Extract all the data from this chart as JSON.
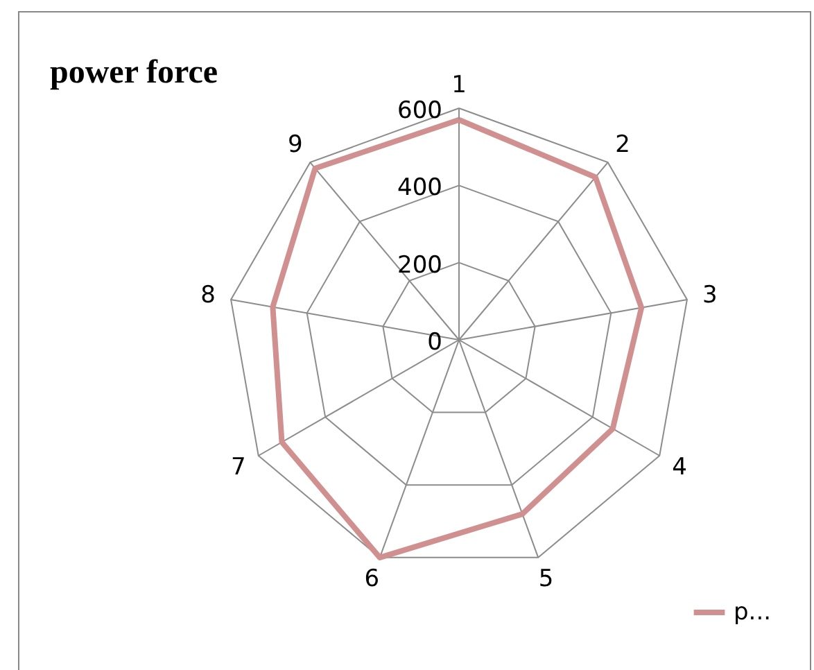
{
  "chart_data": {
    "type": "radar",
    "title": "power force",
    "categories": [
      "1",
      "2",
      "3",
      "4",
      "5",
      "6",
      "7",
      "8",
      "9"
    ],
    "series": [
      {
        "name": "p...",
        "color": "#d09090",
        "values": [
          570,
          550,
          480,
          460,
          480,
          600,
          530,
          490,
          580
        ]
      }
    ],
    "ylim": [
      0,
      600
    ],
    "yticks": [
      0,
      200,
      400,
      600
    ],
    "grid": true,
    "legend": "bottom right",
    "marker": "none"
  }
}
